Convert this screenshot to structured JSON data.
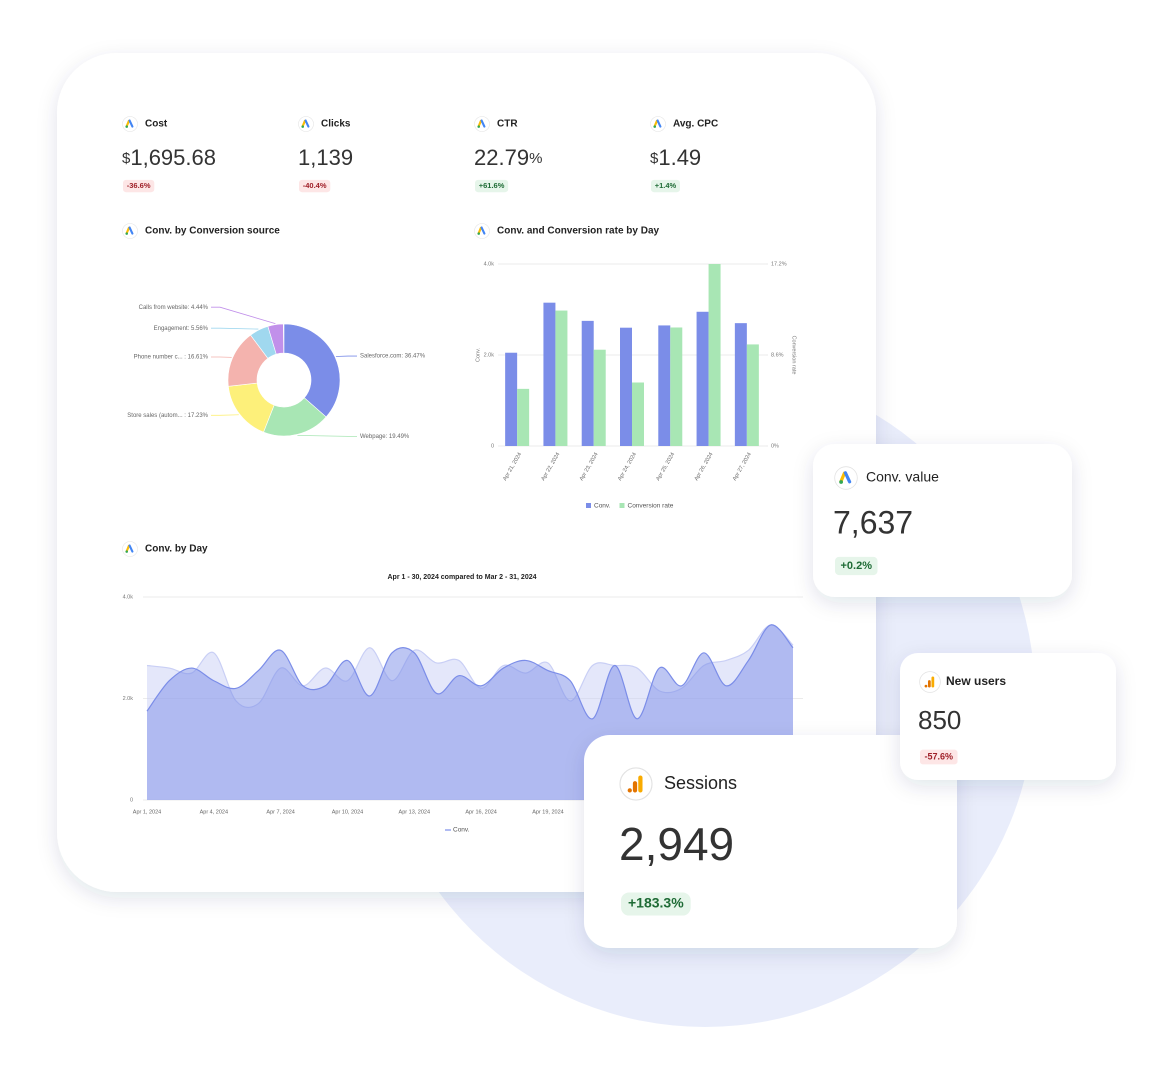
{
  "kpis": [
    {
      "label": "Cost",
      "prefix": "$",
      "value": "1,695.68",
      "change": "-36.6%"
    },
    {
      "label": "Clicks",
      "value": "1,139",
      "change": "-40.4%"
    },
    {
      "label": "CTR",
      "value": "22.79",
      "suffix": "%",
      "change": "+61.6%"
    },
    {
      "label": "Avg. CPC",
      "prefix": "$",
      "value": "1.49",
      "change": "+1.4%"
    }
  ],
  "chart_data": [
    {
      "type": "pie",
      "title": "Conv. by Conversion source",
      "values": [
        36.47,
        19.49,
        17.23,
        16.61,
        5.56,
        4.44
      ],
      "value_labels": [
        "Salesforce.com: 36.47%",
        "Webpage: 19.49%",
        "Store sales (autom... : 17.23%",
        "Phone number c... : 16.61%",
        "Engagement: 5.56%",
        "Calls from website: 4.44%"
      ],
      "colors": [
        "#7b8de8",
        "#a8e6b4",
        "#fdf07a",
        "#f4b3ae",
        "#a0d8ef",
        "#c190ea"
      ]
    },
    {
      "type": "bar",
      "title": "Conv. and Conversion rate by Day",
      "categories": [
        "Apr 21, 2024",
        "Apr 22, 2024",
        "Apr 23, 2024",
        "Apr 24, 2024",
        "Apr 25, 2024",
        "Apr 26, 2024",
        "Apr 27, 2024"
      ],
      "series": [
        {
          "name": "Conv.",
          "color": "#7b8de8",
          "values": [
            2050,
            3150,
            2750,
            2600,
            2650,
            2950,
            2700
          ]
        },
        {
          "name": "Conversion rate",
          "color": "#a8e6b4",
          "axis": "y2",
          "values": [
            5.4,
            12.8,
            9.1,
            6.0,
            11.2,
            17.2,
            9.6
          ]
        }
      ],
      "ylabel": "Conv.",
      "y2label": "Conversion rate",
      "ylim": [
        0,
        4000
      ],
      "yticks": [
        0,
        {
          "value": 2000,
          "label": "2.0k"
        },
        {
          "value": 4000,
          "label": "4.0k"
        }
      ],
      "y2lim": [
        0,
        17.2
      ],
      "y2ticks": [
        {
          "value": 0,
          "label": "0%"
        },
        {
          "value": 8.6,
          "label": "8.6%"
        },
        {
          "value": 17.2,
          "label": "17.2%"
        }
      ],
      "grid": true
    },
    {
      "type": "area",
      "title": "Conv. by Day",
      "subtitle": "Apr 1 - 30, 2024 compared to Mar 2 - 31, 2024",
      "categories": [
        "Apr 1, 2024",
        null,
        null,
        "Apr 4, 2024",
        null,
        null,
        "Apr 7, 2024",
        null,
        null,
        "Apr 10, 2024",
        null,
        null,
        "Apr 13, 2024",
        null,
        null,
        "Apr 16, 2024",
        null,
        null,
        "Apr 19, 2024",
        null,
        null,
        null,
        null,
        null,
        null,
        null,
        null,
        null,
        null,
        null
      ],
      "series": [
        {
          "name": "Conv.",
          "color": "#7b8de8",
          "values": [
            1750,
            2350,
            2600,
            2350,
            2200,
            2550,
            2950,
            2250,
            2250,
            2750,
            2050,
            2900,
            2900,
            2100,
            2450,
            2250,
            2600,
            2750,
            2550,
            2350,
            1600,
            2650,
            1600,
            2600,
            2250,
            2900,
            2250,
            2750,
            3450,
            3000
          ]
        },
        {
          "color": "#c9cff5",
          "values": [
            2650,
            2600,
            2500,
            2900,
            1950,
            1900,
            2600,
            2250,
            2600,
            2350,
            3000,
            2350,
            2950,
            2700,
            2750,
            2200,
            2650,
            2500,
            2700,
            1950,
            2650,
            2650,
            2600,
            2150,
            2200,
            2650,
            2750,
            2950,
            3450,
            3050
          ]
        }
      ],
      "ylim": [
        0,
        4000
      ],
      "yticks": [
        0,
        {
          "value": 2000,
          "label": "2.0k"
        },
        {
          "value": 4000,
          "label": "4.0k"
        }
      ],
      "grid": true
    }
  ],
  "cards": [
    {
      "label": "Conv. value",
      "value": "7,637",
      "change": "+0.2%"
    },
    {
      "label": "Sessions",
      "value": "2,949",
      "change": "+183.3%"
    },
    {
      "label": "New users",
      "value": "850",
      "change": "-57.6%"
    }
  ]
}
